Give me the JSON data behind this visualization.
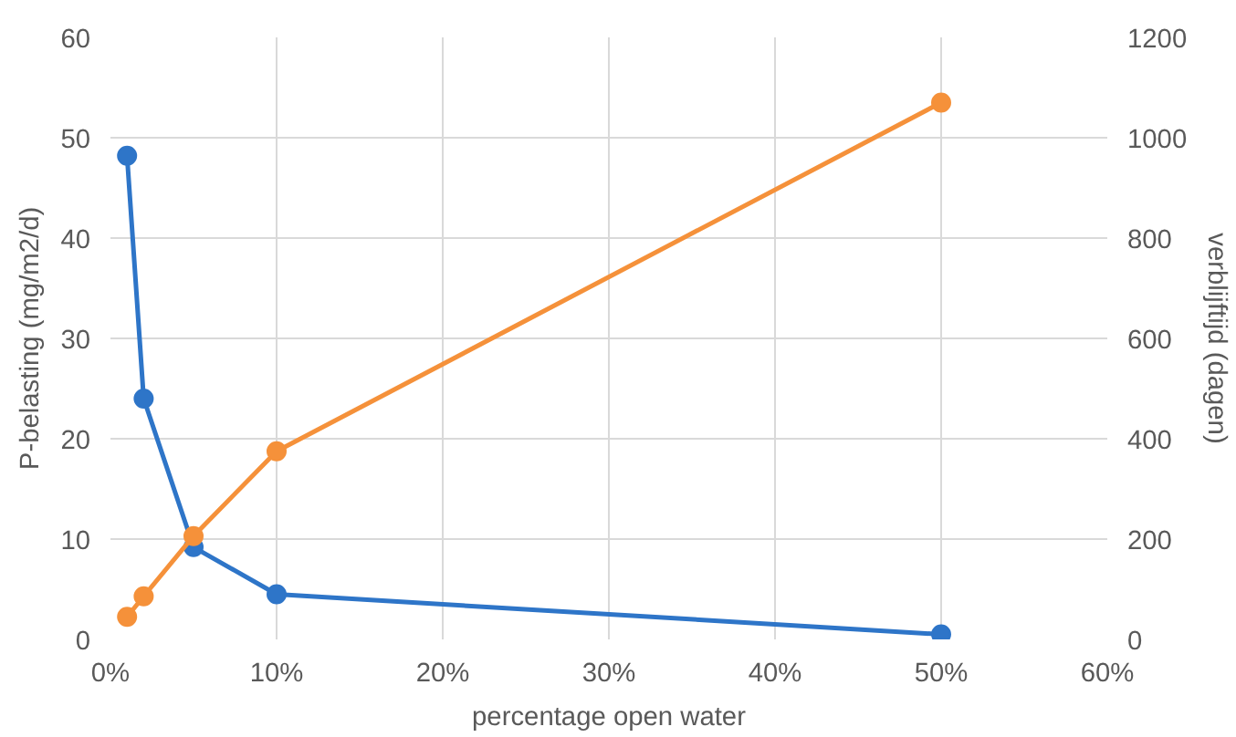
{
  "chart_data": {
    "type": "line",
    "xlabel": "percentage open water",
    "ylabel": "P-belasting (mg/m2/d)",
    "y2label": "verblijftijd (dagen)",
    "x": [
      1,
      2,
      5,
      10,
      50
    ],
    "series": [
      {
        "color": "#2e75c8",
        "values": [
          48.2,
          24.0,
          9.2,
          4.5,
          0.5
        ]
      },
      {
        "color": "#f5913a",
        "values": [
          45,
          86,
          206,
          375,
          1070
        ],
        "axis": "y2"
      }
    ],
    "xlim": [
      0,
      60
    ],
    "xticks": [
      {
        "value": 0,
        "label": "0%"
      },
      {
        "value": 10,
        "label": "10%"
      },
      {
        "value": 20,
        "label": "20%"
      },
      {
        "value": 30,
        "label": "30%"
      },
      {
        "value": 40,
        "label": "40%"
      },
      {
        "value": 50,
        "label": "50%"
      },
      {
        "value": 60,
        "label": "60%"
      }
    ],
    "ylim": [
      0,
      60
    ],
    "yticks": [
      0,
      10,
      20,
      30,
      40,
      50,
      60
    ],
    "y2lim": [
      0,
      1200
    ],
    "y2ticks": [
      0,
      200,
      400,
      600,
      800,
      1000,
      1200
    ],
    "grid": true,
    "marker": "circle",
    "line_style": "solid"
  }
}
